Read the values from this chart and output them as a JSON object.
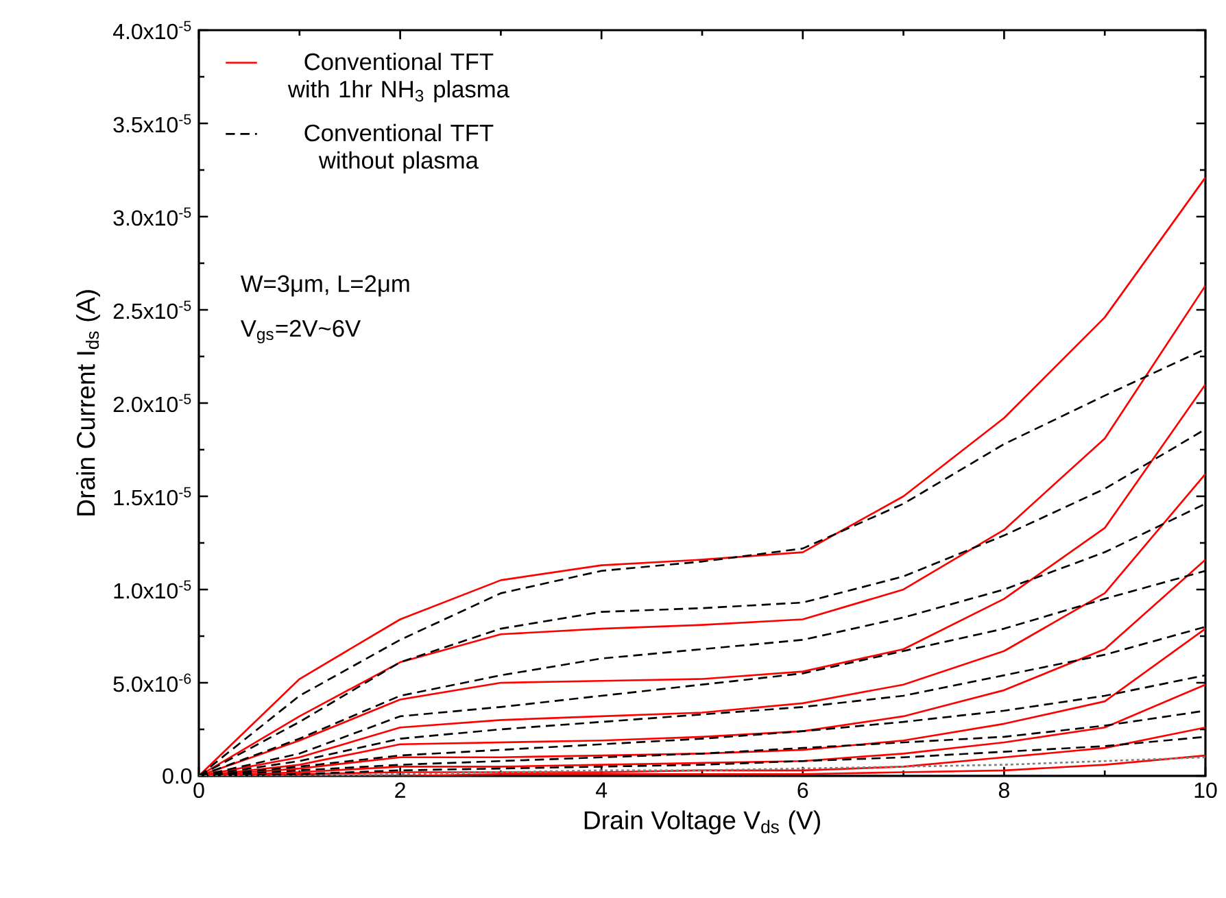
{
  "chart_data": {
    "type": "line",
    "xlabel": "Drain Voltage V$_{ds}$ (V)",
    "ylabel": "Drain Current I$_{ds}$ (A)",
    "x": [
      0,
      1,
      2,
      3,
      4,
      5,
      6,
      7,
      8,
      9,
      10
    ],
    "series": [
      {
        "name": "Conventional TFT with 1hr NH$_{3}$ plasma",
        "color": "#ff0000",
        "line_style": "solid",
        "values": [
          0,
          5.2e-06,
          8.4e-06,
          1.05e-05,
          1.13e-05,
          1.16e-05,
          1.2e-05,
          1.5e-05,
          1.92e-05,
          2.46e-05,
          3.21e-05
        ]
      },
      {
        "color": "#ff0000",
        "line_style": "solid",
        "values": [
          0,
          3.2e-06,
          6.1e-06,
          7.6e-06,
          7.9e-06,
          8.1e-06,
          8.4e-06,
          1e-05,
          1.32e-05,
          1.81e-05,
          2.63e-05
        ]
      },
      {
        "color": "#ff0000",
        "line_style": "solid",
        "values": [
          0,
          1.9e-06,
          4.1e-06,
          5e-06,
          5.1e-06,
          5.2e-06,
          5.6e-06,
          6.8e-06,
          9.5e-06,
          1.33e-05,
          2.1e-05
        ]
      },
      {
        "color": "#ff0000",
        "line_style": "solid",
        "values": [
          0,
          1e-06,
          2.6e-06,
          3e-06,
          3.2e-06,
          3.4e-06,
          3.9e-06,
          4.9e-06,
          6.7e-06,
          9.8e-06,
          1.62e-05
        ]
      },
      {
        "color": "#ff0000",
        "line_style": "solid",
        "values": [
          0,
          6e-07,
          1.7e-06,
          1.8e-06,
          1.9e-06,
          2.1e-06,
          2.4e-06,
          3.2e-06,
          4.6e-06,
          6.8e-06,
          1.16e-05
        ]
      },
      {
        "color": "#ff0000",
        "line_style": "solid",
        "values": [
          0,
          4e-07,
          1e-06,
          1e-06,
          1.1e-06,
          1.2e-06,
          1.4e-06,
          1.9e-06,
          2.8e-06,
          4e-06,
          7.9e-06
        ]
      },
      {
        "color": "#ff0000",
        "line_style": "solid",
        "values": [
          0,
          2e-07,
          5e-07,
          5e-07,
          6e-07,
          7e-07,
          8e-07,
          1.2e-06,
          1.8e-06,
          2.6e-06,
          4.9e-06
        ]
      },
      {
        "color": "#ff0000",
        "line_style": "solid",
        "values": [
          0,
          1e-07,
          2e-07,
          2e-07,
          2e-07,
          3e-07,
          3e-07,
          5e-07,
          1e-06,
          1.5e-06,
          2.6e-06
        ]
      },
      {
        "color": "#ff0000",
        "line_style": "solid",
        "values": [
          0,
          0,
          0,
          1e-07,
          1e-07,
          1e-07,
          1e-07,
          2e-07,
          3e-07,
          6e-07,
          1.1e-06
        ]
      },
      {
        "name": "Conventional TFT without plasma",
        "color": "#000000",
        "line_style": "dashed",
        "values": [
          0,
          4.3e-06,
          7.3e-06,
          9.8e-06,
          1.1e-05,
          1.15e-05,
          1.22e-05,
          1.46e-05,
          1.78e-05,
          2.04e-05,
          2.29e-05
        ]
      },
      {
        "color": "#000000",
        "line_style": "dashed",
        "values": [
          0,
          2.9e-06,
          6.1e-06,
          7.9e-06,
          8.8e-06,
          9e-06,
          9.3e-06,
          1.07e-05,
          1.29e-05,
          1.54e-05,
          1.86e-05
        ]
      },
      {
        "color": "#000000",
        "line_style": "dashed",
        "values": [
          0,
          2e-06,
          4.3e-06,
          5.4e-06,
          6.3e-06,
          6.8e-06,
          7.3e-06,
          8.5e-06,
          1e-05,
          1.2e-05,
          1.46e-05
        ]
      },
      {
        "color": "#000000",
        "line_style": "dashed",
        "values": [
          0,
          1.2e-06,
          3.2e-06,
          3.7e-06,
          4.3e-06,
          4.9e-06,
          5.5e-06,
          6.7e-06,
          7.9e-06,
          9.5e-06,
          1.1e-05
        ]
      },
      {
        "color": "#000000",
        "line_style": "dashed",
        "values": [
          0,
          8e-07,
          2e-06,
          2.5e-06,
          2.9e-06,
          3.3e-06,
          3.7e-06,
          4.3e-06,
          5.4e-06,
          6.5e-06,
          8e-06
        ]
      },
      {
        "color": "#000000",
        "line_style": "dashed",
        "values": [
          0,
          5e-07,
          1.1e-06,
          1.4e-06,
          1.7e-06,
          2e-06,
          2.4e-06,
          2.9e-06,
          3.5e-06,
          4.3e-06,
          5.4e-06
        ]
      },
      {
        "color": "#000000",
        "line_style": "dashed",
        "values": [
          0,
          3e-07,
          6e-07,
          8e-07,
          1e-06,
          1.2e-06,
          1.5e-06,
          1.8e-06,
          2.1e-06,
          2.7e-06,
          3.5e-06
        ]
      },
      {
        "color": "#000000",
        "line_style": "dashed",
        "values": [
          0,
          1e-07,
          3e-07,
          4e-07,
          5e-07,
          6e-07,
          8e-07,
          1e-06,
          1.3e-06,
          1.6e-06,
          2.1e-06
        ]
      },
      {
        "color": "#808080",
        "line_style": "dotted",
        "values": [
          0,
          0,
          1e-07,
          2e-07,
          3e-07,
          3e-07,
          4e-07,
          5e-07,
          6e-07,
          8e-07,
          1e-06
        ]
      }
    ],
    "xlim": [
      0,
      10
    ],
    "xticks": [
      0,
      2,
      4,
      6,
      8,
      10
    ],
    "ylim": [
      0,
      4e-05
    ],
    "yticks": [
      {
        "value": 0,
        "label": "0.0"
      },
      {
        "value": 5e-06,
        "label": "5.0x10$^{-6}$"
      },
      {
        "value": 1e-05,
        "label": "1.0x10$^{-5}$"
      },
      {
        "value": 1.5e-05,
        "label": "1.5x10$^{-5}$"
      },
      {
        "value": 2e-05,
        "label": "2.0x10$^{-5}$"
      },
      {
        "value": 2.5e-05,
        "label": "2.5x10$^{-5}$"
      },
      {
        "value": 3e-05,
        "label": "3.0x10$^{-5}$"
      },
      {
        "value": 3.5e-05,
        "label": "3.5x10$^{-5}$"
      },
      {
        "value": 4e-05,
        "label": "4.0x10$^{-5}$"
      }
    ],
    "annotations": [
      "W=3μm,  L=2μm",
      "V$_{gs}$=2V~6V"
    ],
    "legend": "top left",
    "grid": false,
    "marker": "none"
  }
}
